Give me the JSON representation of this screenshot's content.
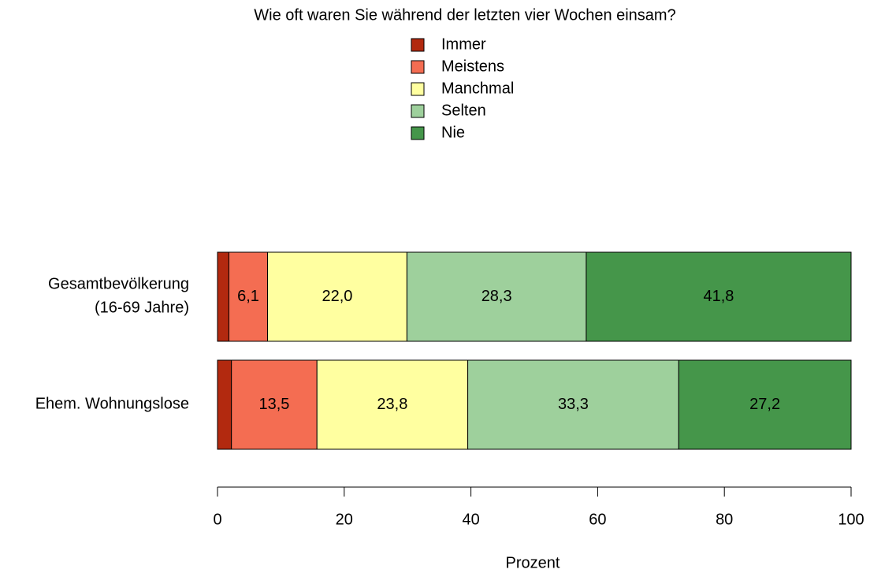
{
  "chart_data": {
    "type": "stacked-barh",
    "title": "Wie oft waren Sie während der letzten vier Wochen einsam?",
    "x_label": "Prozent",
    "categories": [
      "Gesamtbevölkerung\n(16-69 Jahre)",
      "Ehem. Wohnungslose"
    ],
    "series": [
      {
        "name": "Immer",
        "color": "#b2290f",
        "values": [
          1.8,
          2.2
        ]
      },
      {
        "name": "Meistens",
        "color": "#f46d52",
        "values": [
          6.1,
          13.5
        ],
        "value_labels": [
          "6,1",
          "13,5"
        ]
      },
      {
        "name": "Manchmal",
        "color": "#ffffa0",
        "values": [
          22.0,
          23.8
        ],
        "value_labels": [
          "22,0",
          "23,8"
        ]
      },
      {
        "name": "Selten",
        "color": "#9ed09c",
        "values": [
          28.3,
          33.3
        ],
        "value_labels": [
          "28,3",
          "33,3"
        ]
      },
      {
        "name": "Nie",
        "color": "#45964a",
        "values": [
          41.8,
          27.2
        ],
        "value_labels": [
          "41,8",
          "27,2"
        ]
      }
    ],
    "xlim": [
      0,
      100
    ],
    "xticks": [
      0,
      20,
      40,
      60,
      80,
      100
    ]
  }
}
